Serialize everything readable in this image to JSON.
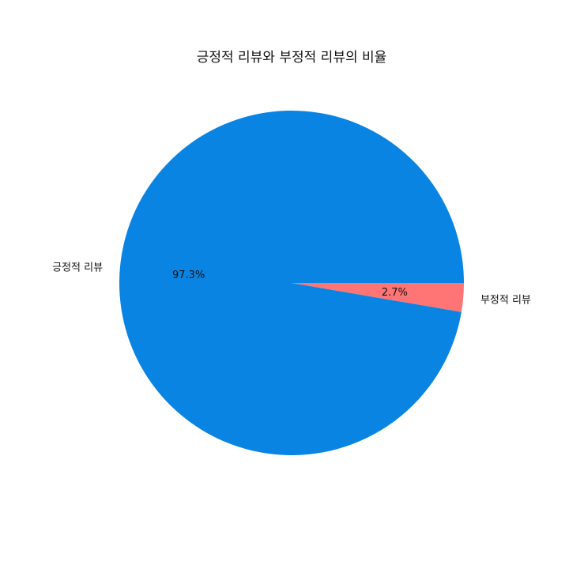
{
  "chart_data": {
    "type": "pie",
    "title": "긍정적 리뷰와 부정적 리뷰의 비율",
    "slices": [
      {
        "label": "긍정적 리뷰",
        "value": 97.3,
        "pct_label": "97.3%",
        "color": "#0a84e2"
      },
      {
        "label": "부정적 리뷰",
        "value": 2.7,
        "pct_label": "2.7%",
        "color": "#ff7474"
      }
    ],
    "start_angle": 0,
    "direction": "counterclockwise"
  }
}
